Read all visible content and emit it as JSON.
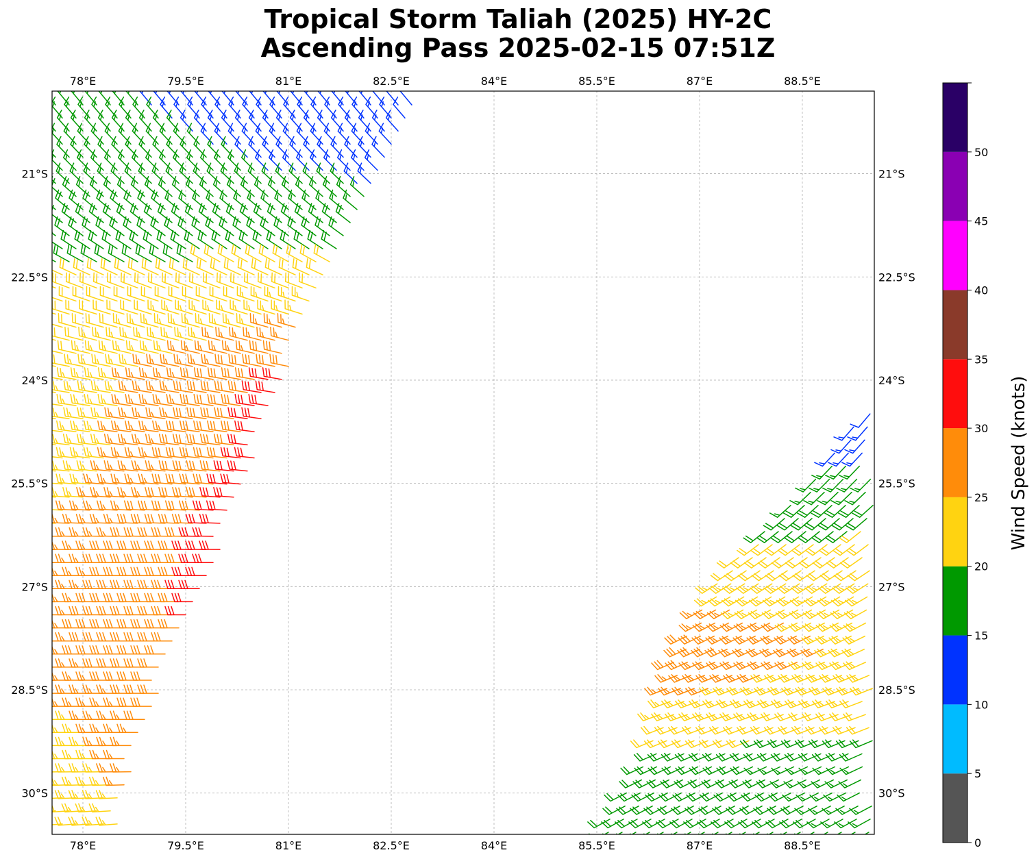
{
  "title_line1": "Tropical Storm Taliah (2025) HY-2C",
  "title_line2": "Ascending Pass 2025-02-15 07:51Z",
  "map": {
    "lon_range": [
      77.55,
      89.55
    ],
    "lat_range": [
      -30.6,
      -19.8
    ],
    "lon_ticks": [
      {
        "value": 78.0,
        "label": "78°E"
      },
      {
        "value": 79.5,
        "label": "79.5°E"
      },
      {
        "value": 81.0,
        "label": "81°E"
      },
      {
        "value": 82.5,
        "label": "82.5°E"
      },
      {
        "value": 84.0,
        "label": "84°E"
      },
      {
        "value": 85.5,
        "label": "85.5°E"
      },
      {
        "value": 87.0,
        "label": "87°E"
      },
      {
        "value": 88.5,
        "label": "88.5°E"
      }
    ],
    "lat_ticks": [
      {
        "value": -21.0,
        "label": "21°S"
      },
      {
        "value": -22.5,
        "label": "22.5°S"
      },
      {
        "value": -24.0,
        "label": "24°S"
      },
      {
        "value": -25.5,
        "label": "25.5°S"
      },
      {
        "value": -27.0,
        "label": "27°S"
      },
      {
        "value": -28.5,
        "label": "28.5°S"
      },
      {
        "value": -30.0,
        "label": "30°S"
      }
    ],
    "grid": true,
    "grid_color": "#b0b0b0"
  },
  "colorbar": {
    "label": "Wind Speed (knots)",
    "tick_labels": [
      "0",
      "5",
      "10",
      "15",
      "20",
      "25",
      "30",
      "35",
      "40",
      "45",
      "50"
    ],
    "bins": [
      {
        "from": 0,
        "to": 5,
        "color": "#555555"
      },
      {
        "from": 5,
        "to": 10,
        "color": "#00bbff"
      },
      {
        "from": 10,
        "to": 15,
        "color": "#0033ff"
      },
      {
        "from": 15,
        "to": 20,
        "color": "#009900"
      },
      {
        "from": 20,
        "to": 25,
        "color": "#ffd311"
      },
      {
        "from": 25,
        "to": 30,
        "color": "#ff8c0a"
      },
      {
        "from": 30,
        "to": 35,
        "color": "#ff0d0d"
      },
      {
        "from": 35,
        "to": 40,
        "color": "#8a3a2a"
      },
      {
        "from": 40,
        "to": 45,
        "color": "#ff00ff"
      },
      {
        "from": 45,
        "to": 50,
        "color": "#8a00b3"
      },
      {
        "from": 50,
        "to": 55,
        "color": "#2a0066"
      }
    ]
  },
  "swaths": [
    {
      "name": "west",
      "west_edge": [
        [
          77.55,
          -19.9
        ],
        [
          77.55,
          -30.6
        ]
      ],
      "east_edge": [
        [
          83.0,
          -19.9
        ],
        [
          82.5,
          -20.9
        ],
        [
          81.6,
          -22.5
        ],
        [
          80.9,
          -24.1
        ],
        [
          80.3,
          -25.8
        ],
        [
          79.8,
          -27.1
        ],
        [
          79.2,
          -28.4
        ],
        [
          78.9,
          -29.1
        ],
        [
          78.5,
          -30.6
        ]
      ],
      "wind_field": [
        {
          "lat": -20.0,
          "lon_west": 77.55,
          "lon_east": 83.0,
          "dir_from": 320,
          "speed_west": 16,
          "speed_east": 12
        },
        {
          "lat": -21.0,
          "lon_west": 77.55,
          "lon_east": 82.4,
          "dir_from": 315,
          "speed_west": 17,
          "speed_east": 14
        },
        {
          "lat": -22.0,
          "lon_west": 77.55,
          "lon_east": 81.9,
          "dir_from": 305,
          "speed_west": 19,
          "speed_east": 19
        },
        {
          "lat": -22.7,
          "lon_west": 77.55,
          "lon_east": 81.5,
          "dir_from": 290,
          "speed_west": 21,
          "speed_east": 22
        },
        {
          "lat": -24.0,
          "lon_west": 77.55,
          "lon_east": 80.9,
          "dir_from": 280,
          "speed_west": 22,
          "speed_east": 31
        },
        {
          "lat": -25.5,
          "lon_west": 77.55,
          "lon_east": 80.4,
          "dir_from": 275,
          "speed_west": 23,
          "speed_east": 31
        },
        {
          "lat": -26.5,
          "lon_west": 77.55,
          "lon_east": 80.0,
          "dir_from": 270,
          "speed_west": 26,
          "speed_east": 31
        },
        {
          "lat": -28.0,
          "lon_west": 77.55,
          "lon_east": 79.4,
          "dir_from": 270,
          "speed_west": 27,
          "speed_east": 30
        },
        {
          "lat": -29.5,
          "lon_west": 77.55,
          "lon_east": 78.7,
          "dir_from": 270,
          "speed_west": 22,
          "speed_east": 27
        },
        {
          "lat": -30.6,
          "lon_west": 77.55,
          "lon_east": 78.5,
          "dir_from": 265,
          "speed_west": 21,
          "speed_east": 24
        }
      ]
    },
    {
      "name": "east",
      "west_edge": [
        [
          89.55,
          -24.2
        ],
        [
          88.6,
          -25.5
        ],
        [
          87.3,
          -26.8
        ],
        [
          86.6,
          -28.0
        ],
        [
          86.2,
          -29.5
        ],
        [
          85.5,
          -30.6
        ]
      ],
      "east_edge": [
        [
          89.55,
          -24.2
        ],
        [
          89.55,
          -30.6
        ]
      ],
      "wind_field": [
        {
          "lat": -24.4,
          "lon_west": 89.3,
          "lon_east": 89.55,
          "dir_from": 220,
          "speed_west": 12,
          "speed_east": 12
        },
        {
          "lat": -25.5,
          "lon_west": 88.6,
          "lon_east": 89.55,
          "dir_from": 225,
          "speed_west": 16,
          "speed_east": 17
        },
        {
          "lat": -26.6,
          "lon_west": 87.5,
          "lon_east": 89.55,
          "dir_from": 235,
          "speed_west": 21,
          "speed_east": 22
        },
        {
          "lat": -27.9,
          "lon_west": 86.9,
          "lon_east": 89.55,
          "dir_from": 245,
          "speed_west": 29,
          "speed_east": 24
        },
        {
          "lat": -28.8,
          "lon_west": 86.4,
          "lon_east": 89.55,
          "dir_from": 250,
          "speed_west": 24,
          "speed_east": 22
        },
        {
          "lat": -29.6,
          "lon_west": 86.0,
          "lon_east": 89.55,
          "dir_from": 245,
          "speed_west": 18,
          "speed_east": 17
        },
        {
          "lat": -30.6,
          "lon_west": 85.5,
          "lon_east": 89.55,
          "dir_from": 240,
          "speed_west": 20,
          "speed_east": 17
        }
      ]
    }
  ]
}
